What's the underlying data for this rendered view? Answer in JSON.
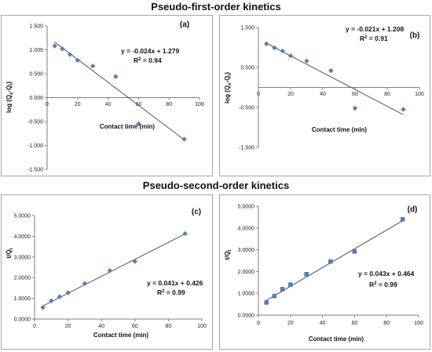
{
  "titles": {
    "top": "Pseudo-first-order kinetics",
    "bottom": "Pseudo-second-order kinetics"
  },
  "colors": {
    "marker": "#4f81bd",
    "line": "#555555",
    "axis": "#7f7f7f"
  },
  "chart_data": [
    {
      "id": "a",
      "type": "scatter",
      "panel_label": "(a)",
      "xlabel": "Contact time (min)",
      "ylabel": "log (Qe-Qt)",
      "ylabel_main": "log (Q",
      "ylabel_sub1": "e",
      "ylabel_mid": "-Q",
      "ylabel_sub2": "t",
      "ylabel_end": ")",
      "xlim": [
        0,
        100
      ],
      "ylim": [
        -1.5,
        1.5
      ],
      "xticks": [
        0,
        20,
        40,
        60,
        80,
        100
      ],
      "xtick_labels": [
        "0",
        "20",
        "40",
        "60",
        "80",
        "100"
      ],
      "yticks": [
        1.5,
        1.0,
        0.5,
        0.0,
        -0.5,
        -1.0,
        -1.5
      ],
      "ytick_labels": [
        "1.500",
        "1.000",
        "0.500",
        "0.000",
        "-0.500",
        "-1.000",
        "-1.500"
      ],
      "x": [
        5,
        10,
        15,
        20,
        30,
        45,
        60,
        90
      ],
      "y": [
        1.08,
        1.02,
        0.9,
        0.78,
        0.66,
        0.44,
        -0.55,
        -0.87
      ],
      "trendline": {
        "slope": -0.024,
        "intercept": 1.279,
        "x_range": [
          5,
          90
        ]
      },
      "equation": "y = -0.024x + 1.279",
      "r2_prefix": "R",
      "r2_sup": "2",
      "r2_suffix": " = 0.94",
      "marker": "diamond"
    },
    {
      "id": "b",
      "type": "scatter",
      "panel_label": "(b)",
      "xlabel": "Contact time (min)",
      "ylabel": "log (Qe-Qt)",
      "ylabel_main": "log (Q",
      "ylabel_sub1": "e",
      "ylabel_mid": "-Q",
      "ylabel_sub2": "t",
      "ylabel_end": ")",
      "xlim": [
        0,
        100
      ],
      "ylim": [
        -1.5,
        1.5
      ],
      "xticks": [
        0,
        20,
        40,
        60,
        80,
        100
      ],
      "xtick_labels": [
        "0",
        "20",
        "40",
        "60",
        "80",
        "100"
      ],
      "yticks": [
        1.5,
        0.5,
        -0.5,
        -1.5
      ],
      "ytick_labels": [
        "1.500",
        "0.500",
        "-0.500",
        "-1.500"
      ],
      "x": [
        5,
        10,
        15,
        20,
        30,
        45,
        60,
        90
      ],
      "y": [
        1.09,
        0.99,
        0.91,
        0.79,
        0.66,
        0.42,
        -0.52,
        -0.55
      ],
      "trendline": {
        "slope": -0.021,
        "intercept": 1.208,
        "x_range": [
          5,
          90
        ]
      },
      "equation": "y = -0.021x + 1.208",
      "r2_prefix": "R",
      "r2_sup": "2",
      "r2_suffix": " = 0.91",
      "marker": "diamond"
    },
    {
      "id": "c",
      "type": "scatter",
      "panel_label": "(c)",
      "xlabel": "Contact time (min)",
      "ylabel": "t/Qt",
      "ylabel_main": "t/Q",
      "ylabel_sub1": "t",
      "ylabel_mid": "",
      "ylabel_sub2": "",
      "ylabel_end": "",
      "xlim": [
        0,
        100
      ],
      "ylim": [
        0,
        5
      ],
      "xticks": [
        0,
        20,
        40,
        60,
        80,
        100
      ],
      "xtick_labels": [
        "0",
        "20",
        "40",
        "60",
        "80",
        "100"
      ],
      "yticks": [
        5,
        4,
        3,
        2,
        1,
        0
      ],
      "ytick_labels": [
        "5.0000",
        "4.0000",
        "3.0000",
        "2.0000",
        "1.0000",
        "0.0000"
      ],
      "x": [
        5,
        10,
        15,
        20,
        30,
        45,
        60,
        90
      ],
      "y": [
        0.56,
        0.88,
        1.08,
        1.27,
        1.72,
        2.34,
        2.79,
        4.13
      ],
      "trendline": {
        "slope": 0.041,
        "intercept": 0.426,
        "x_range": [
          5,
          90
        ]
      },
      "equation": "y = 0.041x + 0.426",
      "r2_prefix": "R",
      "r2_sup": "2",
      "r2_suffix": " = 0.99",
      "marker": "diamond"
    },
    {
      "id": "d",
      "type": "scatter",
      "panel_label": "(d)",
      "xlabel": "Contact time (min)",
      "ylabel": "t/Qt",
      "ylabel_main": "t/Q",
      "ylabel_sub1": "t",
      "ylabel_mid": "",
      "ylabel_sub2": "",
      "ylabel_end": "",
      "xlim": [
        0,
        100
      ],
      "ylim": [
        0,
        5
      ],
      "xticks": [
        0,
        20,
        40,
        60,
        80,
        100
      ],
      "xtick_labels": [
        "0",
        "20",
        "40",
        "60",
        "80",
        "100"
      ],
      "yticks": [
        5,
        4,
        3,
        2,
        1,
        0
      ],
      "ytick_labels": [
        "5.0000",
        "4.0000",
        "3.0000",
        "2.0000",
        "1.0000",
        "0.0000"
      ],
      "x": [
        5,
        10,
        15,
        20,
        30,
        45,
        60,
        90
      ],
      "y": [
        0.58,
        0.88,
        1.19,
        1.4,
        1.88,
        2.46,
        2.92,
        4.4
      ],
      "trendline": {
        "slope": 0.043,
        "intercept": 0.464,
        "x_range": [
          5,
          90
        ]
      },
      "equation": "y = 0.043x + 0.464",
      "r2_prefix": "R",
      "r2_sup": "2",
      "r2_suffix": " = 0.99",
      "marker": "square"
    }
  ]
}
